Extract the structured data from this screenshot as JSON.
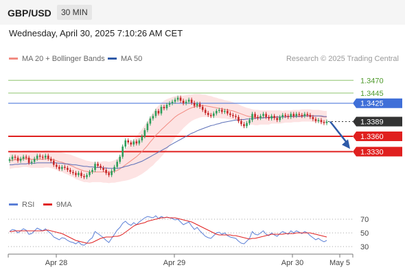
{
  "header": {
    "symbol": "GBP/USD",
    "timeframe": "30 MIN",
    "datetime": "Wednesday, April 30, 2025 7:10:26 AM CET"
  },
  "legend_main": [
    {
      "label": "MA 20 + Bollinger Bands",
      "color": "#f28b82"
    },
    {
      "label": "MA 50",
      "color": "#2e5aa8"
    }
  ],
  "credit": "Research © 2025 Trading Central",
  "legend_rsi": [
    {
      "label": "RSI",
      "color": "#5b7fd6"
    },
    {
      "label": "9MA",
      "color": "#e02020"
    }
  ],
  "colors": {
    "up": "#2e9e5b",
    "down": "#c62828",
    "resistance_green": "#8dc46e",
    "resistance_blue": "#3f6fd8",
    "support_red": "#e0201f",
    "last": "#333333",
    "band_fill": "#fde3e3",
    "arrow": "#2e5aa8"
  },
  "chart_data": [
    {
      "type": "candlestick",
      "price_range": [
        1.3247,
        1.35
      ],
      "x_labels": [
        "Apr 28",
        "Apr 29",
        "Apr 30",
        "May 5"
      ],
      "levels": [
        {
          "value": 1.347,
          "label": "1.3470",
          "kind": "resistance",
          "color": "#8dc46e"
        },
        {
          "value": 1.3445,
          "label": "1.3445",
          "kind": "resistance",
          "color": "#8dc46e"
        },
        {
          "value": 1.3425,
          "label": "1.3425",
          "kind": "resistance",
          "color": "#3f6fd8"
        },
        {
          "value": 1.3389,
          "label": "1.3389",
          "kind": "last",
          "color": "#333333"
        },
        {
          "value": 1.336,
          "label": "1.3360",
          "kind": "support",
          "color": "#e0201f"
        },
        {
          "value": 1.333,
          "label": "1.3330",
          "kind": "support",
          "color": "#e0201f"
        }
      ],
      "close": [
        1.3315,
        1.332,
        1.3318,
        1.3312,
        1.3316,
        1.332,
        1.3318,
        1.3308,
        1.331,
        1.3316,
        1.3322,
        1.332,
        1.3318,
        1.3322,
        1.3316,
        1.3312,
        1.3304,
        1.33,
        1.3296,
        1.33,
        1.3298,
        1.3294,
        1.329,
        1.3288,
        1.3284,
        1.3288,
        1.3282,
        1.328,
        1.3284,
        1.329,
        1.3294,
        1.3306,
        1.3302,
        1.3298,
        1.3294,
        1.3288,
        1.3284,
        1.3292,
        1.33,
        1.331,
        1.332,
        1.334,
        1.3352,
        1.3348,
        1.3344,
        1.335,
        1.3346,
        1.3352,
        1.336,
        1.3372,
        1.3385,
        1.3395,
        1.34,
        1.341,
        1.3405,
        1.3418,
        1.3415,
        1.3422,
        1.3425,
        1.3428,
        1.3432,
        1.3436,
        1.343,
        1.3425,
        1.3428,
        1.3432,
        1.3426,
        1.342,
        1.3424,
        1.3418,
        1.3412,
        1.3406,
        1.3402,
        1.34,
        1.3405,
        1.341,
        1.3412,
        1.3408,
        1.341,
        1.3405,
        1.3402,
        1.34,
        1.3398,
        1.339,
        1.3384,
        1.338,
        1.3386,
        1.3392,
        1.3404,
        1.3398,
        1.3396,
        1.34,
        1.3404,
        1.3398,
        1.3395,
        1.34,
        1.3396,
        1.3392,
        1.3398,
        1.3402,
        1.34,
        1.3398,
        1.3404,
        1.34,
        1.3404,
        1.3402,
        1.34,
        1.3404,
        1.3402,
        1.3398,
        1.3394,
        1.339,
        1.3392,
        1.3388,
        1.3386,
        1.3389
      ],
      "ma20": [
        1.3312,
        1.3313,
        1.3314,
        1.3314,
        1.3315,
        1.3316,
        1.3316,
        1.3316,
        1.3315,
        1.3315,
        1.3315,
        1.3315,
        1.3315,
        1.3316,
        1.3316,
        1.3315,
        1.3314,
        1.3312,
        1.331,
        1.3309,
        1.3307,
        1.3305,
        1.3303,
        1.3301,
        1.3298,
        1.3296,
        1.3294,
        1.3292,
        1.3291,
        1.329,
        1.329,
        1.329,
        1.329,
        1.329,
        1.329,
        1.329,
        1.3289,
        1.329,
        1.3291,
        1.3293,
        1.3296,
        1.33,
        1.3304,
        1.3308,
        1.3312,
        1.3316,
        1.332,
        1.3325,
        1.333,
        1.3336,
        1.3342,
        1.3349,
        1.3355,
        1.3362,
        1.3367,
        1.3373,
        1.3378,
        1.3383,
        1.3388,
        1.3393,
        1.3398,
        1.3402,
        1.3405,
        1.3408,
        1.3411,
        1.3414,
        1.3416,
        1.3418,
        1.3419,
        1.342,
        1.342,
        1.342,
        1.3419,
        1.3418,
        1.3417,
        1.3416,
        1.3415,
        1.3414,
        1.3413,
        1.3412,
        1.3411,
        1.341,
        1.3408,
        1.3406,
        1.3404,
        1.3402,
        1.34,
        1.3399,
        1.3398,
        1.3397,
        1.3397,
        1.3397,
        1.3397,
        1.3397,
        1.3397,
        1.3398,
        1.3398,
        1.3398,
        1.3398,
        1.3398,
        1.3399,
        1.3399,
        1.3399,
        1.34,
        1.34,
        1.34,
        1.3401,
        1.3401,
        1.3401,
        1.3401,
        1.34,
        1.34,
        1.34,
        1.3399,
        1.3398,
        1.3398
      ],
      "ma50": [
        1.3304,
        1.3304,
        1.3305,
        1.3305,
        1.3306,
        1.3306,
        1.3306,
        1.3307,
        1.3307,
        1.3307,
        1.3308,
        1.3308,
        1.3308,
        1.3308,
        1.3308,
        1.3308,
        1.3308,
        1.3308,
        1.3307,
        1.3307,
        1.3306,
        1.3306,
        1.3305,
        1.3304,
        1.3304,
        1.3303,
        1.3302,
        1.3301,
        1.3301,
        1.33,
        1.33,
        1.3299,
        1.3299,
        1.3299,
        1.3298,
        1.3298,
        1.3297,
        1.3297,
        1.3297,
        1.3297,
        1.3298,
        1.3299,
        1.3301,
        1.3302,
        1.3304,
        1.3305,
        1.3307,
        1.3309,
        1.3311,
        1.3314,
        1.3317,
        1.332,
        1.3323,
        1.3326,
        1.3329,
        1.3332,
        1.3335,
        1.3338,
        1.3342,
        1.3345,
        1.3348,
        1.3351,
        1.3354,
        1.3357,
        1.336,
        1.3363,
        1.3366,
        1.3368,
        1.3371,
        1.3373,
        1.3375,
        1.3377,
        1.3379,
        1.3381,
        1.3382,
        1.3384,
        1.3385,
        1.3387,
        1.3388,
        1.3389,
        1.339,
        1.3391,
        1.3392,
        1.3392,
        1.3393,
        1.3393,
        1.3394,
        1.3394,
        1.3395,
        1.3395,
        1.3396,
        1.3396,
        1.3396,
        1.3397,
        1.3397,
        1.3397,
        1.3397,
        1.3398,
        1.3398,
        1.3398,
        1.3398,
        1.3399,
        1.3399,
        1.3399,
        1.3399,
        1.3399,
        1.3399,
        1.34,
        1.34,
        1.34,
        1.34,
        1.34,
        1.34,
        1.34,
        1.3399,
        1.3399
      ],
      "band_width": [
        0.0016,
        0.0016,
        0.0016,
        0.0016,
        0.0016,
        0.0016,
        0.0016,
        0.0017,
        0.0017,
        0.0017,
        0.0017,
        0.0017,
        0.0017,
        0.0017,
        0.0017,
        0.0017,
        0.0018,
        0.0018,
        0.0019,
        0.0019,
        0.002,
        0.002,
        0.0021,
        0.0021,
        0.0022,
        0.0022,
        0.0022,
        0.0022,
        0.0021,
        0.0021,
        0.002,
        0.002,
        0.002,
        0.002,
        0.0021,
        0.0021,
        0.0021,
        0.0021,
        0.0022,
        0.0023,
        0.0025,
        0.0028,
        0.0031,
        0.0034,
        0.0036,
        0.0038,
        0.004,
        0.0042,
        0.0044,
        0.0046,
        0.0048,
        0.005,
        0.0052,
        0.0053,
        0.0053,
        0.0053,
        0.0052,
        0.005,
        0.0047,
        0.0044,
        0.0041,
        0.0038,
        0.0035,
        0.0032,
        0.003,
        0.0028,
        0.0026,
        0.0025,
        0.0024,
        0.0023,
        0.0022,
        0.0022,
        0.0021,
        0.0021,
        0.002,
        0.002,
        0.0019,
        0.0019,
        0.0018,
        0.0018,
        0.0018,
        0.0017,
        0.0017,
        0.0017,
        0.0016,
        0.0016,
        0.0016,
        0.0016,
        0.0015,
        0.0015,
        0.0015,
        0.0014,
        0.0014,
        0.0014,
        0.0014,
        0.0013,
        0.0013,
        0.0013,
        0.0013,
        0.0012,
        0.0012,
        0.0012,
        0.0012,
        0.0012,
        0.0012,
        0.0012,
        0.0012,
        0.0012,
        0.0012,
        0.0012,
        0.0012,
        0.0012,
        0.0012,
        0.0012,
        0.0012,
        0.0012
      ],
      "projection": {
        "from": 1.3389,
        "to": 1.333
      }
    },
    {
      "type": "line",
      "name": "RSI panel",
      "ylim": [
        20,
        80
      ],
      "y_ticks": [
        70,
        50,
        30
      ],
      "series": [
        {
          "name": "RSI",
          "values": [
            52,
            55,
            54,
            50,
            53,
            56,
            54,
            48,
            49,
            53,
            57,
            55,
            53,
            56,
            52,
            49,
            44,
            42,
            40,
            43,
            42,
            39,
            37,
            36,
            34,
            37,
            33,
            32,
            35,
            40,
            43,
            52,
            49,
            46,
            43,
            39,
            36,
            42,
            48,
            54,
            58,
            64,
            67,
            63,
            61,
            65,
            62,
            66,
            69,
            72,
            74,
            73,
            72,
            75,
            71,
            74,
            72,
            73,
            72,
            71,
            69,
            70,
            66,
            62,
            64,
            66,
            60,
            55,
            58,
            53,
            49,
            45,
            43,
            42,
            46,
            50,
            51,
            48,
            50,
            46,
            44,
            43,
            42,
            38,
            35,
            34,
            38,
            42,
            52,
            48,
            47,
            50,
            53,
            48,
            46,
            50,
            47,
            45,
            49,
            52,
            50,
            48,
            53,
            50,
            53,
            51,
            49,
            52,
            50,
            46,
            43,
            40,
            42,
            39,
            37,
            39
          ]
        },
        {
          "name": "9MA",
          "values": [
            52,
            52,
            53,
            53,
            53,
            53,
            53,
            53,
            53,
            53,
            53,
            53,
            53,
            54,
            54,
            53,
            52,
            51,
            50,
            49,
            47,
            45,
            43,
            41,
            39,
            38,
            37,
            36,
            35,
            35,
            36,
            38,
            40,
            42,
            43,
            44,
            44,
            44,
            45,
            45,
            46,
            48,
            51,
            54,
            57,
            60,
            62,
            63,
            64,
            65,
            67,
            68,
            69,
            70,
            71,
            72,
            72,
            73,
            72,
            72,
            72,
            71,
            70,
            69,
            68,
            67,
            66,
            64,
            62,
            60,
            58,
            56,
            54,
            52,
            50,
            48,
            47,
            47,
            47,
            47,
            47,
            46,
            46,
            45,
            44,
            43,
            42,
            41,
            42,
            42,
            43,
            44,
            45,
            46,
            47,
            48,
            48,
            48,
            48,
            48,
            49,
            49,
            49,
            49,
            50,
            50,
            50,
            50,
            50,
            50,
            49,
            48,
            47,
            46,
            45,
            44
          ]
        }
      ]
    }
  ]
}
